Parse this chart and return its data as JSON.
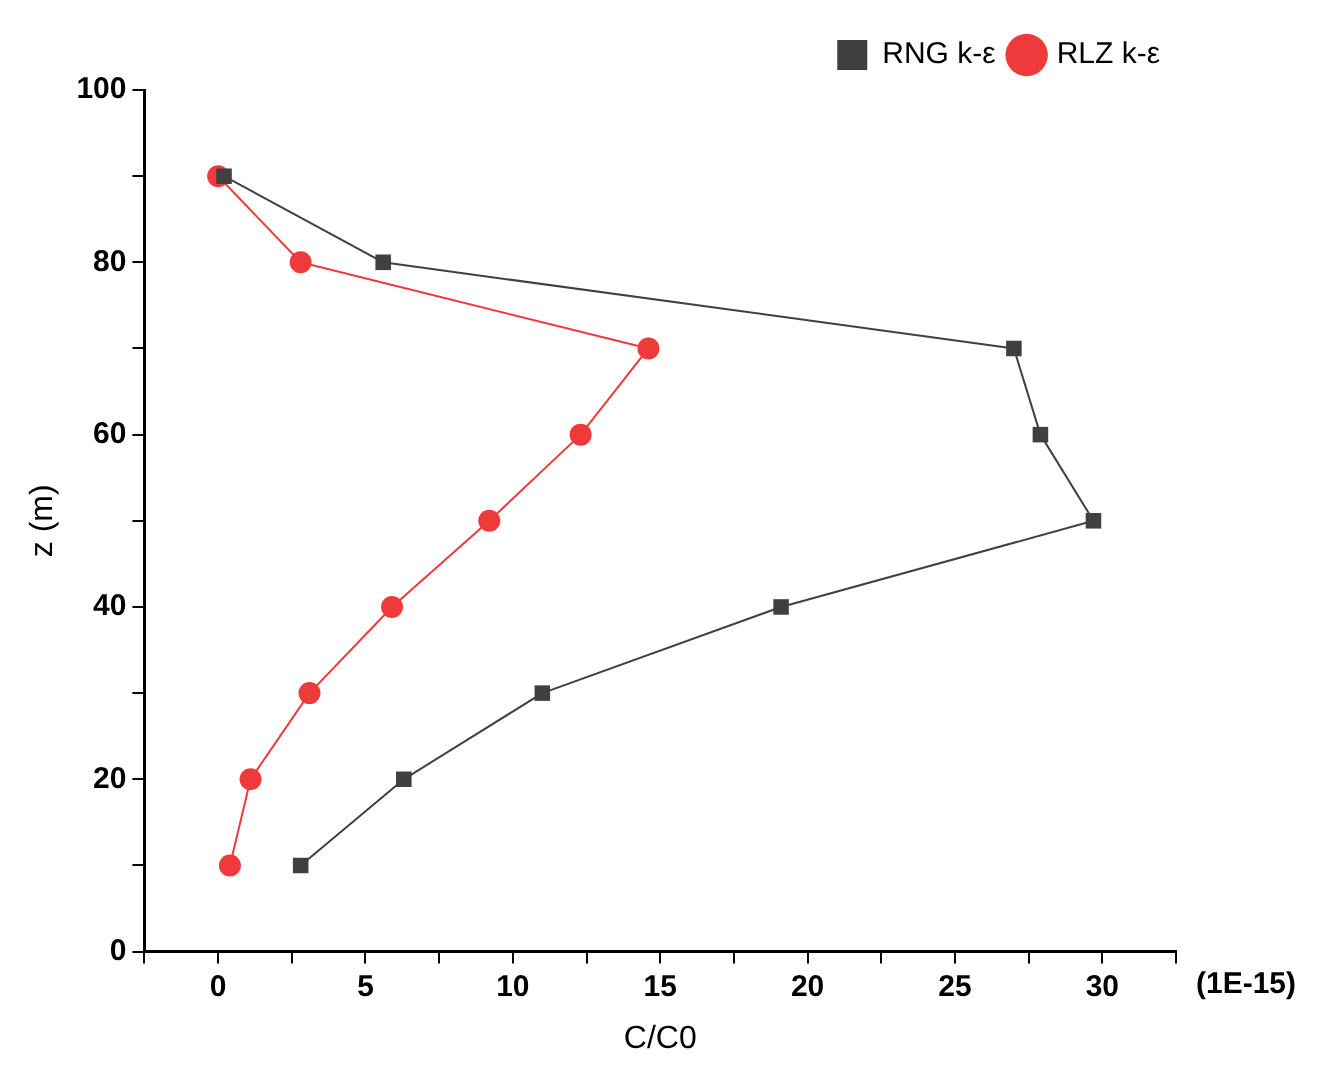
{
  "chart_data": {
    "type": "line",
    "xlabel": "C/C0",
    "ylabel": "z (m)",
    "annotations": [
      "(1E-15)"
    ],
    "xlim": [
      -2.5,
      32.5
    ],
    "xticks": [
      {
        "value": -2.5,
        "label": null
      },
      0,
      {
        "value": 2.5,
        "label": null
      },
      5,
      {
        "value": 7.5,
        "label": null
      },
      10,
      {
        "value": 12.5,
        "label": null
      },
      15,
      {
        "value": 17.5,
        "label": null
      },
      20,
      {
        "value": 22.5,
        "label": null
      },
      25,
      {
        "value": 27.5,
        "label": null
      },
      30,
      {
        "value": 32.5,
        "label": null
      }
    ],
    "ylim": [
      0,
      100
    ],
    "yticks": [
      0,
      {
        "value": 10,
        "label": null
      },
      20,
      {
        "value": 30,
        "label": null
      },
      40,
      {
        "value": 50,
        "label": null
      },
      60,
      {
        "value": 70,
        "label": null
      },
      80,
      {
        "value": 90,
        "label": null
      },
      100
    ],
    "grid": false,
    "legend": "top right",
    "series": [
      {
        "name": "RNG k-ε",
        "color": "#404040",
        "marker": "square",
        "x": [
          0.2,
          5.6,
          27.0,
          27.9,
          29.7,
          19.1,
          11.0,
          6.3,
          2.8
        ],
        "values": [
          90,
          80,
          70,
          60,
          50,
          40,
          30,
          20,
          10
        ]
      },
      {
        "name": "RLZ k-ε",
        "color": "#ee3a3a",
        "marker": "circle",
        "x": [
          0,
          2.8,
          14.6,
          12.3,
          9.2,
          5.9,
          3.1,
          1.1,
          0.4
        ],
        "values": [
          90,
          80,
          70,
          60,
          50,
          40,
          30,
          20,
          10
        ]
      }
    ]
  }
}
